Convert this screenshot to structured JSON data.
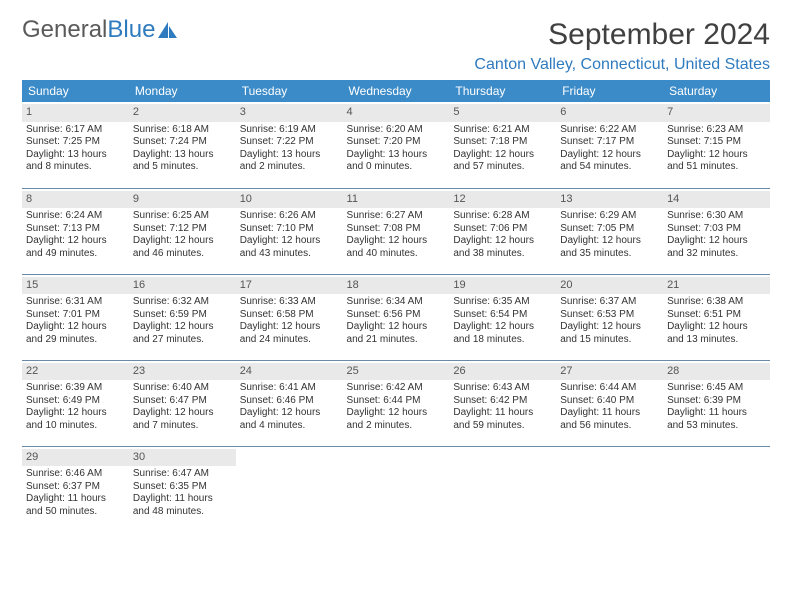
{
  "brand": {
    "part1": "General",
    "part2": "Blue",
    "text_color": "#5a5a5a",
    "accent_color": "#2f7bbf"
  },
  "title": "September 2024",
  "location": "Canton Valley, Connecticut, United States",
  "colors": {
    "header_bg": "#3b8bc8",
    "header_text": "#ffffff",
    "daynum_bg": "#e9e9e9",
    "row_border": "#6a8aa8",
    "body_text": "#333333"
  },
  "weekdays": [
    "Sunday",
    "Monday",
    "Tuesday",
    "Wednesday",
    "Thursday",
    "Friday",
    "Saturday"
  ],
  "weeks": [
    [
      {
        "n": "1",
        "sr": "6:17 AM",
        "ss": "7:25 PM",
        "dl": "13 hours and 8 minutes."
      },
      {
        "n": "2",
        "sr": "6:18 AM",
        "ss": "7:24 PM",
        "dl": "13 hours and 5 minutes."
      },
      {
        "n": "3",
        "sr": "6:19 AM",
        "ss": "7:22 PM",
        "dl": "13 hours and 2 minutes."
      },
      {
        "n": "4",
        "sr": "6:20 AM",
        "ss": "7:20 PM",
        "dl": "13 hours and 0 minutes."
      },
      {
        "n": "5",
        "sr": "6:21 AM",
        "ss": "7:18 PM",
        "dl": "12 hours and 57 minutes."
      },
      {
        "n": "6",
        "sr": "6:22 AM",
        "ss": "7:17 PM",
        "dl": "12 hours and 54 minutes."
      },
      {
        "n": "7",
        "sr": "6:23 AM",
        "ss": "7:15 PM",
        "dl": "12 hours and 51 minutes."
      }
    ],
    [
      {
        "n": "8",
        "sr": "6:24 AM",
        "ss": "7:13 PM",
        "dl": "12 hours and 49 minutes."
      },
      {
        "n": "9",
        "sr": "6:25 AM",
        "ss": "7:12 PM",
        "dl": "12 hours and 46 minutes."
      },
      {
        "n": "10",
        "sr": "6:26 AM",
        "ss": "7:10 PM",
        "dl": "12 hours and 43 minutes."
      },
      {
        "n": "11",
        "sr": "6:27 AM",
        "ss": "7:08 PM",
        "dl": "12 hours and 40 minutes."
      },
      {
        "n": "12",
        "sr": "6:28 AM",
        "ss": "7:06 PM",
        "dl": "12 hours and 38 minutes."
      },
      {
        "n": "13",
        "sr": "6:29 AM",
        "ss": "7:05 PM",
        "dl": "12 hours and 35 minutes."
      },
      {
        "n": "14",
        "sr": "6:30 AM",
        "ss": "7:03 PM",
        "dl": "12 hours and 32 minutes."
      }
    ],
    [
      {
        "n": "15",
        "sr": "6:31 AM",
        "ss": "7:01 PM",
        "dl": "12 hours and 29 minutes."
      },
      {
        "n": "16",
        "sr": "6:32 AM",
        "ss": "6:59 PM",
        "dl": "12 hours and 27 minutes."
      },
      {
        "n": "17",
        "sr": "6:33 AM",
        "ss": "6:58 PM",
        "dl": "12 hours and 24 minutes."
      },
      {
        "n": "18",
        "sr": "6:34 AM",
        "ss": "6:56 PM",
        "dl": "12 hours and 21 minutes."
      },
      {
        "n": "19",
        "sr": "6:35 AM",
        "ss": "6:54 PM",
        "dl": "12 hours and 18 minutes."
      },
      {
        "n": "20",
        "sr": "6:37 AM",
        "ss": "6:53 PM",
        "dl": "12 hours and 15 minutes."
      },
      {
        "n": "21",
        "sr": "6:38 AM",
        "ss": "6:51 PM",
        "dl": "12 hours and 13 minutes."
      }
    ],
    [
      {
        "n": "22",
        "sr": "6:39 AM",
        "ss": "6:49 PM",
        "dl": "12 hours and 10 minutes."
      },
      {
        "n": "23",
        "sr": "6:40 AM",
        "ss": "6:47 PM",
        "dl": "12 hours and 7 minutes."
      },
      {
        "n": "24",
        "sr": "6:41 AM",
        "ss": "6:46 PM",
        "dl": "12 hours and 4 minutes."
      },
      {
        "n": "25",
        "sr": "6:42 AM",
        "ss": "6:44 PM",
        "dl": "12 hours and 2 minutes."
      },
      {
        "n": "26",
        "sr": "6:43 AM",
        "ss": "6:42 PM",
        "dl": "11 hours and 59 minutes."
      },
      {
        "n": "27",
        "sr": "6:44 AM",
        "ss": "6:40 PM",
        "dl": "11 hours and 56 minutes."
      },
      {
        "n": "28",
        "sr": "6:45 AM",
        "ss": "6:39 PM",
        "dl": "11 hours and 53 minutes."
      }
    ],
    [
      {
        "n": "29",
        "sr": "6:46 AM",
        "ss": "6:37 PM",
        "dl": "11 hours and 50 minutes."
      },
      {
        "n": "30",
        "sr": "6:47 AM",
        "ss": "6:35 PM",
        "dl": "11 hours and 48 minutes."
      },
      null,
      null,
      null,
      null,
      null
    ]
  ],
  "labels": {
    "sunrise": "Sunrise:",
    "sunset": "Sunset:",
    "daylight": "Daylight:"
  }
}
